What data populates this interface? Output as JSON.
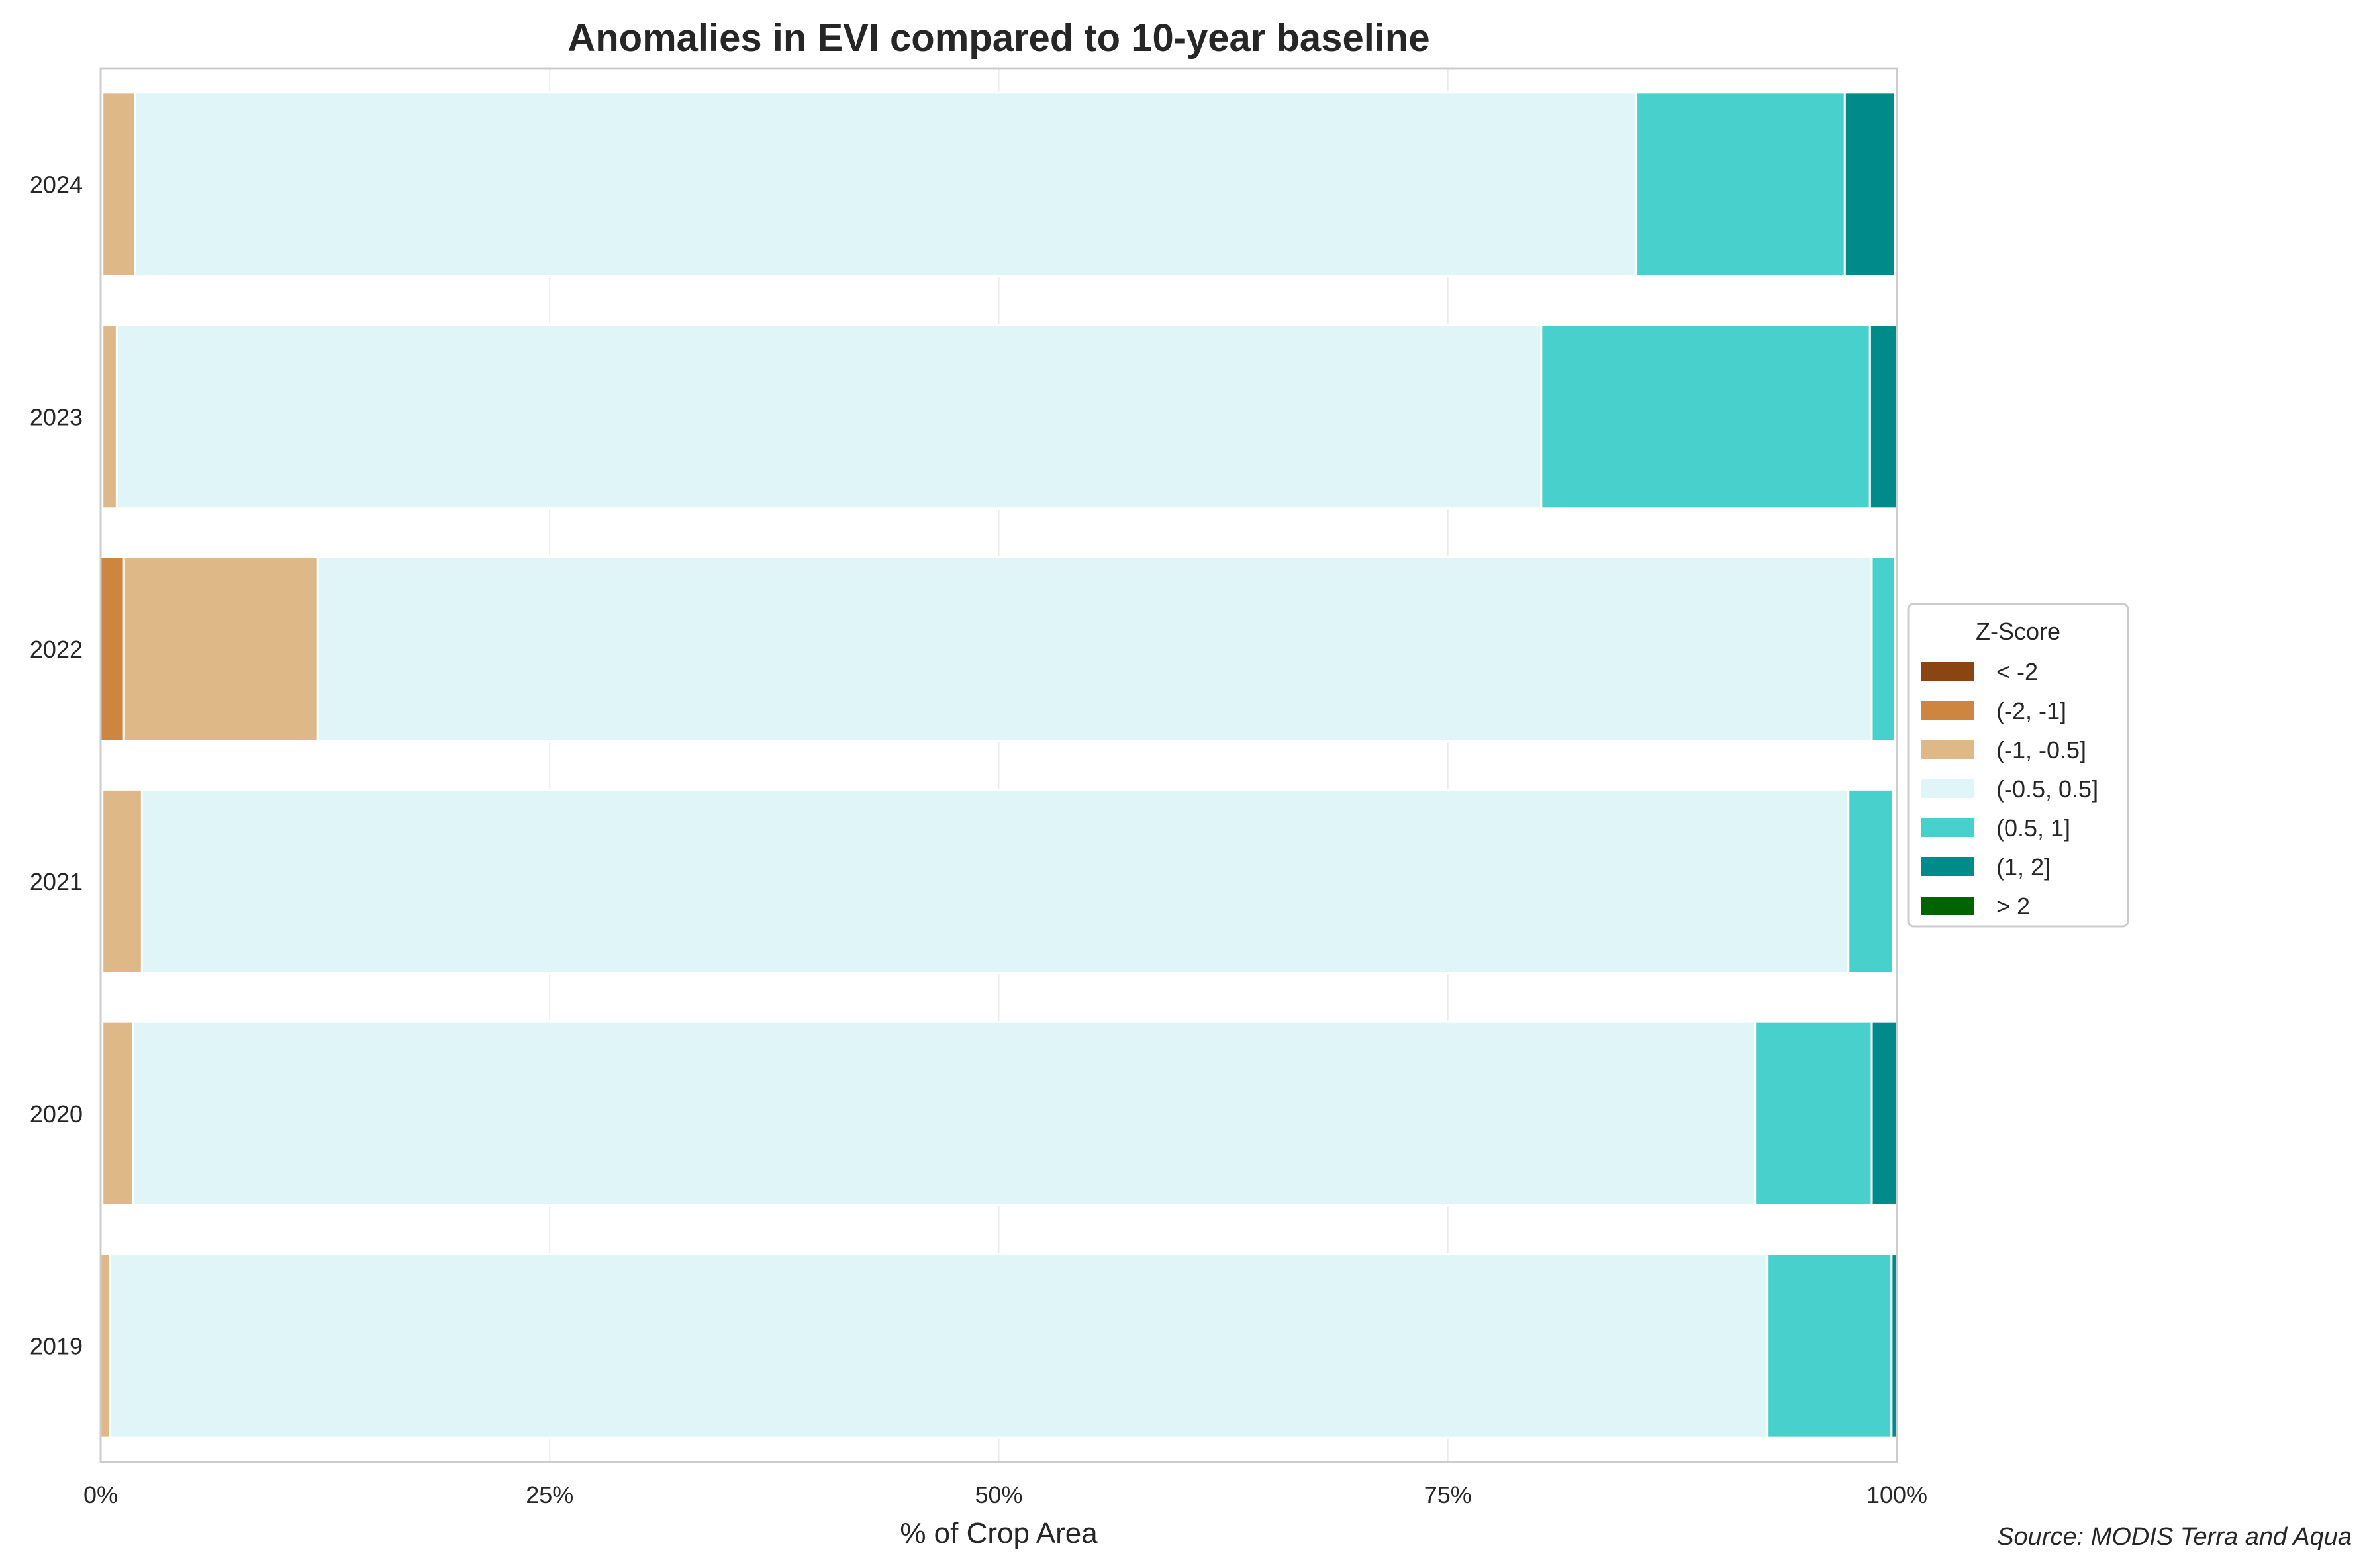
{
  "chart_data": {
    "type": "bar",
    "orientation": "horizontal",
    "stacked": true,
    "title": "Anomalies in EVI compared to 10-year baseline",
    "xlabel": "% of Crop Area",
    "ylabel": "",
    "xlim": [
      0,
      100
    ],
    "x_ticks": [
      0,
      25,
      50,
      75,
      100
    ],
    "x_tick_labels": [
      "0%",
      "25%",
      "50%",
      "75%",
      "100%"
    ],
    "grid": true,
    "categories": [
      "2024",
      "2023",
      "2022",
      "2021",
      "2020",
      "2019"
    ],
    "series": [
      {
        "name": "< -2",
        "color": "#8B4513",
        "values": [
          0.0,
          0.0,
          0.0,
          0.0,
          0.0,
          0.0
        ]
      },
      {
        "name": "(-2, -1]",
        "color": "#CD853F",
        "values": [
          0.1,
          0.1,
          1.3,
          0.1,
          0.1,
          0.0
        ]
      },
      {
        "name": "(-1, -0.5]",
        "color": "#DEB887",
        "values": [
          1.8,
          0.8,
          10.8,
          2.2,
          1.7,
          0.5
        ]
      },
      {
        "name": "(-0.5, 0.5]",
        "color": "#E0F5F7",
        "values": [
          83.6,
          79.3,
          86.5,
          95.0,
          90.3,
          92.3
        ]
      },
      {
        "name": "(0.5, 1]",
        "color": "#48D1CC",
        "values": [
          11.6,
          18.3,
          1.3,
          2.5,
          6.5,
          6.9
        ]
      },
      {
        "name": "(1, 2]",
        "color": "#008B8B",
        "values": [
          2.8,
          1.5,
          0.0,
          0.1,
          1.4,
          0.3
        ]
      },
      {
        "name": "> 2",
        "color": "#006400",
        "values": [
          0.0,
          0.0,
          0.0,
          0.0,
          0.0,
          0.0
        ]
      }
    ],
    "legend": {
      "title": "Z-Score",
      "placement": "center-right"
    },
    "source": "Source: MODIS Terra and Aqua"
  }
}
